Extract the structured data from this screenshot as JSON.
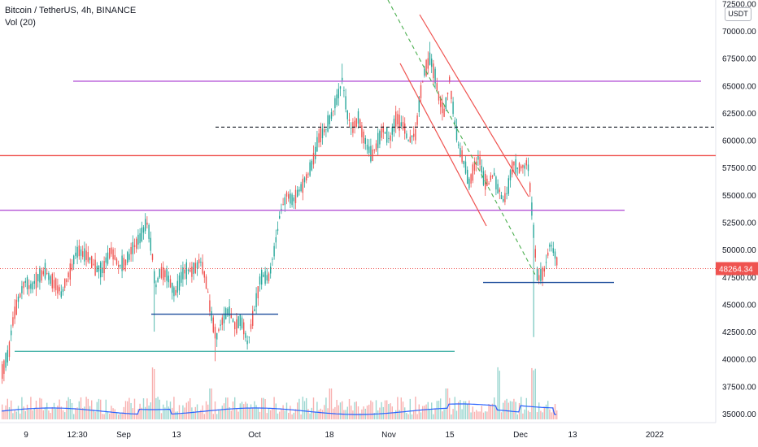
{
  "legend": {
    "symbol": "Bitcoin / TetherUS, 4h, BINANCE",
    "volume": "Vol (20)"
  },
  "currency_button": "USDT",
  "colors": {
    "up": "#26a69a",
    "down": "#ef5350",
    "purple_level": "#b455d6",
    "red_level": "#ef5350",
    "blue_level": "#1e4e9c",
    "teal_level": "#4db6ac",
    "dashed_level": "#131722",
    "trend_dashed": "#4caf50",
    "vol_ma": "#2962ff",
    "price_tag": "#ef5350"
  },
  "chart_data": {
    "type": "candlestick",
    "ylim": [
      34500,
      72600
    ],
    "y_ticks": [
      "35000.00",
      "37500.00",
      "40000.00",
      "42500.00",
      "45000.00",
      "47500.00",
      "50000.00",
      "52500.00",
      "55000.00",
      "57500.00",
      "60000.00",
      "62500.00",
      "65000.00",
      "67500.00",
      "70000.00",
      "72500.00"
    ],
    "x_ticks": [
      "9",
      "12:30",
      "Sep",
      "13",
      "Oct",
      "18",
      "Nov",
      "15",
      "Dec",
      "13",
      "2022"
    ],
    "last_price": "48264.34",
    "series_path": [
      [
        0,
        38500
      ],
      [
        10,
        40500
      ],
      [
        15,
        43500
      ],
      [
        22,
        45500
      ],
      [
        30,
        47000
      ],
      [
        38,
        46500
      ],
      [
        45,
        47500
      ],
      [
        55,
        48000
      ],
      [
        65,
        47000
      ],
      [
        75,
        46000
      ],
      [
        85,
        48000
      ],
      [
        95,
        50000
      ],
      [
        105,
        49500
      ],
      [
        115,
        48500
      ],
      [
        125,
        48000
      ],
      [
        135,
        50000
      ],
      [
        145,
        48500
      ],
      [
        155,
        49000
      ],
      [
        165,
        50500
      ],
      [
        172,
        51000
      ],
      [
        180,
        52500
      ],
      [
        186,
        50000
      ],
      [
        190,
        46500
      ],
      [
        196,
        48000
      ],
      [
        205,
        47500
      ],
      [
        215,
        46000
      ],
      [
        225,
        48000
      ],
      [
        235,
        48000
      ],
      [
        245,
        49000
      ],
      [
        252,
        47500
      ],
      [
        258,
        44500
      ],
      [
        265,
        42000
      ],
      [
        272,
        43500
      ],
      [
        280,
        44500
      ],
      [
        288,
        43000
      ],
      [
        296,
        43500
      ],
      [
        304,
        41500
      ],
      [
        312,
        44500
      ],
      [
        320,
        47500
      ],
      [
        330,
        47500
      ],
      [
        338,
        50500
      ],
      [
        344,
        53500
      ],
      [
        352,
        55000
      ],
      [
        360,
        54500
      ],
      [
        368,
        55500
      ],
      [
        376,
        56500
      ],
      [
        384,
        58000
      ],
      [
        392,
        60500
      ],
      [
        400,
        61000
      ],
      [
        408,
        62500
      ],
      [
        414,
        64000
      ],
      [
        420,
        65500
      ],
      [
        426,
        62500
      ],
      [
        432,
        61000
      ],
      [
        440,
        62000
      ],
      [
        448,
        60000
      ],
      [
        456,
        58500
      ],
      [
        462,
        59500
      ],
      [
        470,
        61000
      ],
      [
        478,
        60000
      ],
      [
        486,
        62000
      ],
      [
        494,
        61500
      ],
      [
        502,
        60000
      ],
      [
        510,
        60500
      ],
      [
        516,
        64000
      ],
      [
        522,
        66500
      ],
      [
        528,
        67500
      ],
      [
        534,
        66000
      ],
      [
        540,
        63500
      ],
      [
        546,
        62500
      ],
      [
        552,
        65500
      ],
      [
        558,
        62000
      ],
      [
        564,
        59000
      ],
      [
        570,
        58000
      ],
      [
        576,
        56000
      ],
      [
        582,
        57500
      ],
      [
        588,
        58500
      ],
      [
        594,
        56500
      ],
      [
        600,
        56000
      ],
      [
        606,
        57000
      ],
      [
        612,
        55500
      ],
      [
        618,
        54500
      ],
      [
        624,
        55500
      ],
      [
        630,
        58000
      ],
      [
        636,
        57500
      ],
      [
        642,
        57500
      ],
      [
        648,
        58000
      ],
      [
        652,
        55000
      ],
      [
        656,
        51000
      ],
      [
        660,
        47500
      ],
      [
        664,
        47500
      ],
      [
        670,
        48500
      ],
      [
        676,
        50500
      ],
      [
        682,
        49500
      ],
      [
        686,
        48300
      ]
    ],
    "levels": [
      {
        "name": "purple-upper",
        "y": 65400,
        "x0": 90,
        "x1": 862
      },
      {
        "name": "dashed",
        "y": 61200,
        "x0": 265,
        "x1": 880
      },
      {
        "name": "red-horizontal",
        "y": 58600,
        "x0": 0,
        "x1": 880
      },
      {
        "name": "purple-lower",
        "y": 53600,
        "x0": 0,
        "x1": 768
      },
      {
        "name": "blue-upper",
        "y": 44100,
        "x0": 186,
        "x1": 342
      },
      {
        "name": "blue-lower",
        "y": 47000,
        "x0": 594,
        "x1": 755
      },
      {
        "name": "teal",
        "y": 40700,
        "x0": 18,
        "x1": 559
      }
    ]
  }
}
